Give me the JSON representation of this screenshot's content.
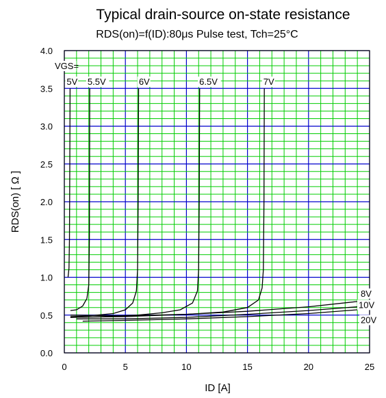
{
  "chart_data": {
    "type": "line",
    "title": "Typical drain-source on-state resistance",
    "subtitle": "RDS(on)=f(ID):80μs Pulse test, Tch=25°C",
    "xlabel": "ID [A]",
    "ylabel": "RDS(on) [ Ω ]",
    "xlim": [
      0,
      25
    ],
    "ylim": [
      0,
      4
    ],
    "x_ticks": [
      "0",
      "5",
      "10",
      "15",
      "20",
      "25"
    ],
    "y_ticks": [
      "0.0",
      "0.5",
      "1.0",
      "1.5",
      "2.0",
      "2.5",
      "3.0",
      "3.5",
      "4.0"
    ],
    "grid": true,
    "colors": {
      "minor_grid": "#00cc00",
      "major_grid": "#0000cc",
      "curve": "#000000",
      "frame": "#000000"
    },
    "legend_title": "VGS=",
    "series": [
      {
        "name": "5V",
        "points": [
          [
            0.3,
            1.0
          ],
          [
            0.38,
            1.12
          ],
          [
            0.42,
            1.5
          ],
          [
            0.45,
            2.5
          ],
          [
            0.47,
            3.5
          ]
        ]
      },
      {
        "name": "5.5V",
        "points": [
          [
            0.5,
            0.56
          ],
          [
            1.0,
            0.57
          ],
          [
            1.5,
            0.62
          ],
          [
            1.85,
            0.72
          ],
          [
            2.0,
            0.9
          ],
          [
            2.05,
            1.5
          ],
          [
            2.07,
            2.5
          ],
          [
            2.08,
            3.5
          ]
        ]
      },
      {
        "name": "6V",
        "points": [
          [
            0.5,
            0.48
          ],
          [
            2.0,
            0.49
          ],
          [
            4.0,
            0.52
          ],
          [
            5.0,
            0.57
          ],
          [
            5.6,
            0.66
          ],
          [
            5.9,
            0.82
          ],
          [
            6.0,
            1.1
          ],
          [
            6.05,
            2.0
          ],
          [
            6.08,
            3.5
          ]
        ]
      },
      {
        "name": "6.5V",
        "points": [
          [
            0.5,
            0.47
          ],
          [
            3.0,
            0.48
          ],
          [
            6.0,
            0.5
          ],
          [
            8.0,
            0.53
          ],
          [
            9.5,
            0.57
          ],
          [
            10.5,
            0.66
          ],
          [
            10.9,
            0.82
          ],
          [
            11.0,
            1.1
          ],
          [
            11.05,
            2.0
          ],
          [
            11.08,
            3.5
          ]
        ]
      },
      {
        "name": "7V",
        "points": [
          [
            0.5,
            0.47
          ],
          [
            5.0,
            0.48
          ],
          [
            10.0,
            0.51
          ],
          [
            13.0,
            0.54
          ],
          [
            15.0,
            0.6
          ],
          [
            15.9,
            0.7
          ],
          [
            16.2,
            0.86
          ],
          [
            16.3,
            1.1
          ],
          [
            16.35,
            2.0
          ],
          [
            16.38,
            3.5
          ]
        ]
      },
      {
        "name": "8V",
        "points": [
          [
            0.5,
            0.5
          ],
          [
            5.0,
            0.49
          ],
          [
            10.0,
            0.51
          ],
          [
            15.0,
            0.55
          ],
          [
            20.0,
            0.61
          ],
          [
            24.0,
            0.68
          ]
        ]
      },
      {
        "name": "10V",
        "points": [
          [
            1.0,
            0.45
          ],
          [
            5.0,
            0.45
          ],
          [
            10.0,
            0.47
          ],
          [
            15.0,
            0.51
          ],
          [
            20.0,
            0.56
          ],
          [
            24.0,
            0.61
          ]
        ]
      },
      {
        "name": "20V",
        "points": [
          [
            1.5,
            0.42
          ],
          [
            5.0,
            0.43
          ],
          [
            10.0,
            0.45
          ],
          [
            15.0,
            0.48
          ],
          [
            20.0,
            0.52
          ],
          [
            24.0,
            0.57
          ]
        ]
      }
    ]
  }
}
